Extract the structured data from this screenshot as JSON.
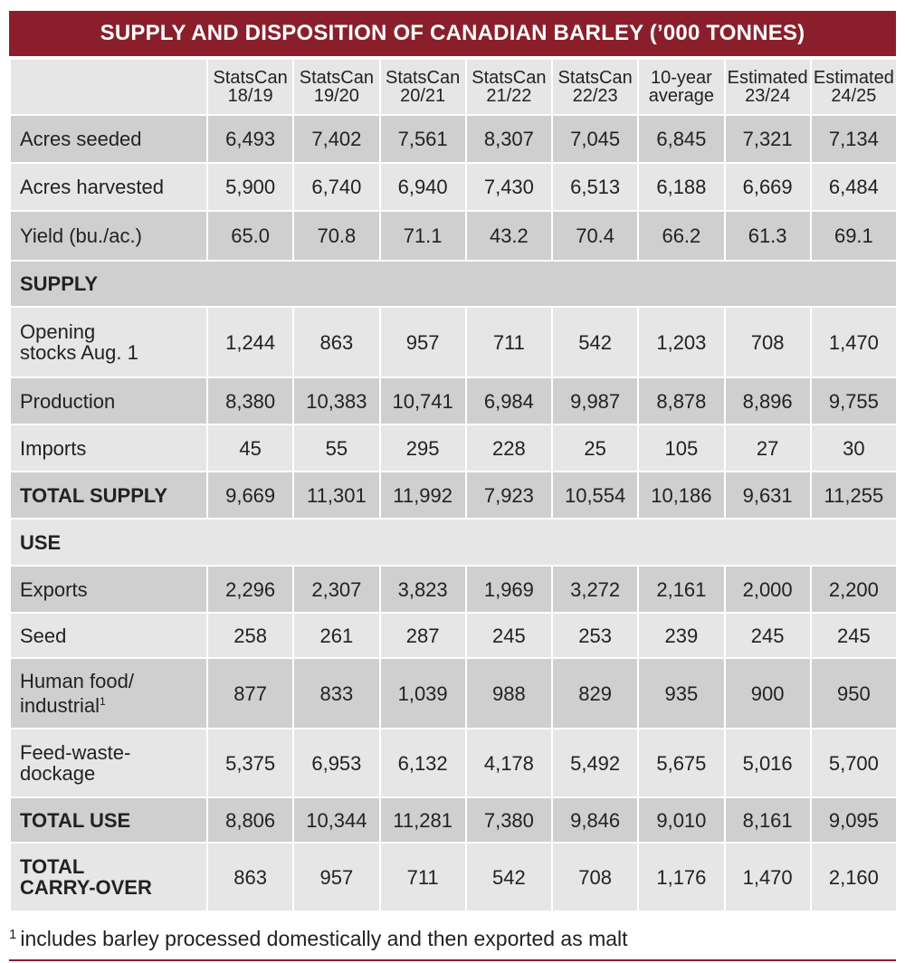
{
  "title": "SUPPLY AND DISPOSITION OF CANADIAN BARLEY (’000 TONNES)",
  "columns": [
    {
      "line1": "StatsCan",
      "line2": "18/19"
    },
    {
      "line1": "StatsCan",
      "line2": "19/20"
    },
    {
      "line1": "StatsCan",
      "line2": "20/21"
    },
    {
      "line1": "StatsCan",
      "line2": "21/22"
    },
    {
      "line1": "StatsCan",
      "line2": "22/23"
    },
    {
      "line1": "10-year",
      "line2": "average"
    },
    {
      "line1": "Estimated",
      "line2": "23/24"
    },
    {
      "line1": "Estimated",
      "line2": "24/25"
    }
  ],
  "rows": [
    {
      "key": "acres-seeded",
      "label": [
        "Acres seeded"
      ],
      "values": [
        "6,493",
        "7,402",
        "7,561",
        "8,307",
        "7,045",
        "6,845",
        "7,321",
        "7,134"
      ]
    },
    {
      "key": "acres-harvested",
      "label": [
        "Acres harvested"
      ],
      "values": [
        "5,900",
        "6,740",
        "6,940",
        "7,430",
        "6,513",
        "6,188",
        "6,669",
        "6,484"
      ]
    },
    {
      "key": "yield",
      "label": [
        "Yield (bu./ac.)"
      ],
      "values": [
        "65.0",
        "70.8",
        "71.1",
        "43.2",
        "70.4",
        "66.2",
        "61.3",
        "69.1"
      ]
    },
    {
      "key": "supply-section",
      "label": [
        "SUPPLY"
      ],
      "section": true
    },
    {
      "key": "opening-stocks",
      "label": [
        "Opening",
        "stocks Aug. 1"
      ],
      "values": [
        "1,244",
        "863",
        "957",
        "711",
        "542",
        "1,203",
        "708",
        "1,470"
      ]
    },
    {
      "key": "production",
      "label": [
        "Production"
      ],
      "values": [
        "8,380",
        "10,383",
        "10,741",
        "6,984",
        "9,987",
        "8,878",
        "8,896",
        "9,755"
      ]
    },
    {
      "key": "imports",
      "label": [
        "Imports"
      ],
      "values": [
        "45",
        "55",
        "295",
        "228",
        "25",
        "105",
        "27",
        "30"
      ]
    },
    {
      "key": "total-supply",
      "label": [
        "TOTAL SUPPLY"
      ],
      "bold": true,
      "values": [
        "9,669",
        "11,301",
        "11,992",
        "7,923",
        "10,554",
        "10,186",
        "9,631",
        "11,255"
      ]
    },
    {
      "key": "use-section",
      "label": [
        "USE"
      ],
      "section": true
    },
    {
      "key": "exports",
      "label": [
        "Exports"
      ],
      "values": [
        "2,296",
        "2,307",
        "3,823",
        "1,969",
        "3,272",
        "2,161",
        "2,000",
        "2,200"
      ]
    },
    {
      "key": "seed",
      "label": [
        "Seed"
      ],
      "values": [
        "258",
        "261",
        "287",
        "245",
        "253",
        "239",
        "245",
        "245"
      ]
    },
    {
      "key": "human-food",
      "label": [
        "Human food/",
        "industrial"
      ],
      "footnote_mark": "1",
      "values": [
        "877",
        "833",
        "1,039",
        "988",
        "829",
        "935",
        "900",
        "950"
      ]
    },
    {
      "key": "feed-waste",
      "label": [
        "Feed-waste-",
        "dockage"
      ],
      "values": [
        "5,375",
        "6,953",
        "6,132",
        "4,178",
        "5,492",
        "5,675",
        "5,016",
        "5,700"
      ]
    },
    {
      "key": "total-use",
      "label": [
        "TOTAL USE"
      ],
      "bold": true,
      "values": [
        "8,806",
        "10,344",
        "11,281",
        "7,380",
        "9,846",
        "9,010",
        "8,161",
        "9,095"
      ]
    },
    {
      "key": "total-carryover",
      "label": [
        "TOTAL",
        "CARRY-OVER"
      ],
      "bold": true,
      "values": [
        "863",
        "957",
        "711",
        "542",
        "708",
        "1,176",
        "1,470",
        "2,160"
      ]
    }
  ],
  "footnote": {
    "mark": "1",
    "text": "includes barley processed domestically and then exported as malt"
  },
  "colors": {
    "title_bg": "#8a1f2b",
    "dark_row": "#cfcfcf",
    "light_row": "#e6e6e6"
  }
}
